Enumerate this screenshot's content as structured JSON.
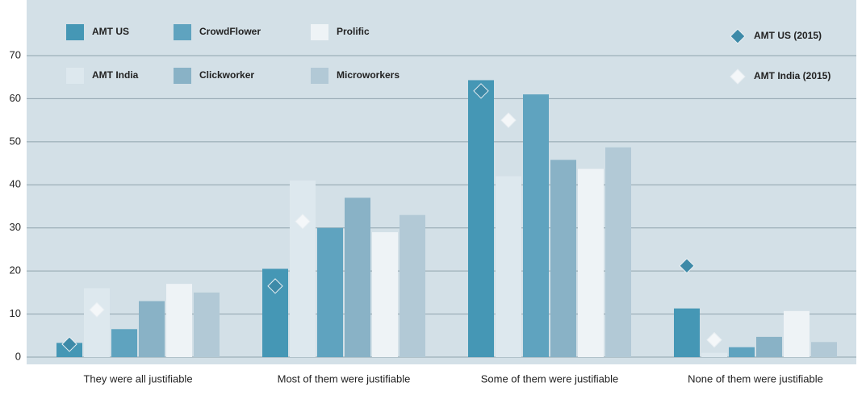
{
  "chart_data": {
    "type": "bar",
    "categories": [
      "They were all justifiable",
      "Most of them were justifiable",
      "Some of them were justifiable",
      "None of them were justifiable"
    ],
    "series": [
      {
        "name": "AMT US",
        "color": "#4597b5",
        "values": [
          3.3,
          20.5,
          64.3,
          11.3
        ]
      },
      {
        "name": "AMT India",
        "color": "#dde8ee",
        "values": [
          16,
          41,
          42,
          1
        ]
      },
      {
        "name": "CrowdFlower",
        "color": "#5fa3bf",
        "values": [
          6.5,
          30,
          61,
          2.3
        ]
      },
      {
        "name": "Clickworker",
        "color": "#89b2c6",
        "values": [
          13,
          37,
          45.8,
          4.7
        ]
      },
      {
        "name": "Prolific",
        "color": "#eef3f6",
        "values": [
          17,
          29,
          43.7,
          10.7
        ]
      },
      {
        "name": "Microworkers",
        "color": "#b2c9d6",
        "values": [
          15,
          33,
          48.7,
          3.5
        ]
      },
      {
        "name": "AMT US (2015)",
        "color": "#3d8aa8",
        "marker": "diamond",
        "values": [
          3,
          16.5,
          61.8,
          21.2
        ]
      },
      {
        "name": "AMT India (2015)",
        "color": "#f4f7f9",
        "marker": "diamond",
        "values": [
          11,
          31.5,
          55,
          4
        ]
      }
    ],
    "ylim": [
      0,
      70
    ],
    "yticks": [
      0,
      10,
      20,
      30,
      40,
      50,
      60,
      70
    ],
    "grid": true
  }
}
